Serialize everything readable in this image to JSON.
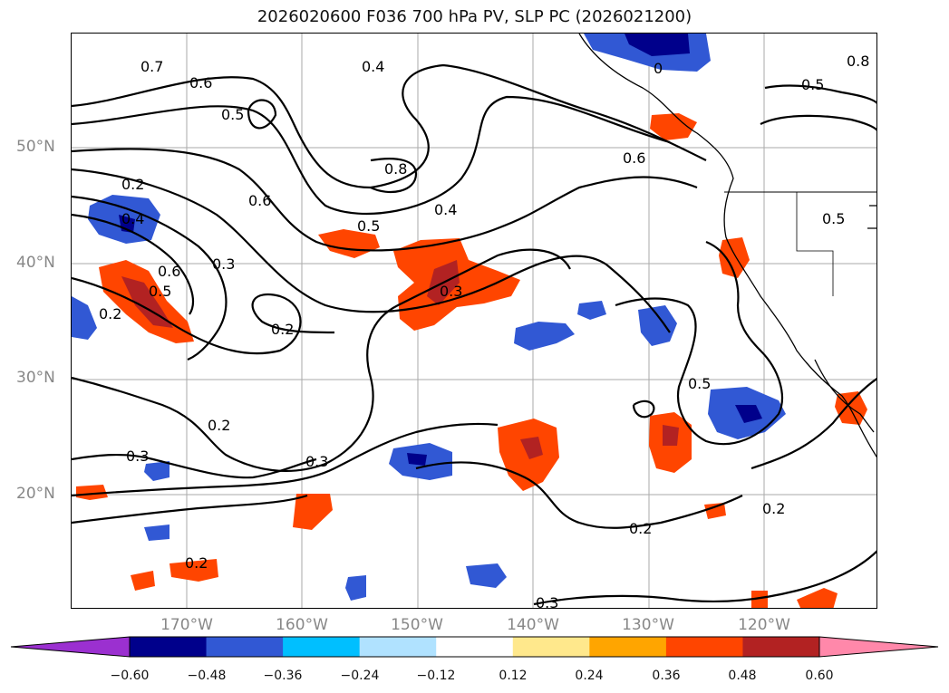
{
  "title": "2026020600 F036 700 hPa PV, SLP PC (2026021200)",
  "lat_labels": [
    "50°N",
    "40°N",
    "30°N",
    "20°N"
  ],
  "lon_labels": [
    "170°W",
    "160°W",
    "150°W",
    "140°W",
    "130°W",
    "120°W"
  ],
  "colorbar": {
    "extend": "both",
    "colors": [
      "#9b30d0",
      "#00008b",
      "#3158d4",
      "#00bfff",
      "#b0e2ff",
      "#ffffff",
      "#ffe88c",
      "#ffa500",
      "#ff4500",
      "#b22222",
      "#ff88aa"
    ],
    "ticks": [
      "−0.60",
      "−0.48",
      "−0.36",
      "−0.24",
      "−0.12",
      "0.12",
      "0.24",
      "0.36",
      "0.48",
      "0.60"
    ]
  },
  "contour_labels": [
    "0.7",
    "0.6",
    "0.5",
    "0.8",
    "0.6",
    "0.5",
    "0.4",
    "0.2",
    "0.4",
    "0.6",
    "0.5",
    "0.3",
    "0.2",
    "0.2",
    "0.3",
    "0.2",
    "0.3",
    "0.2",
    "0.5",
    "0.2",
    "0.3",
    "0.2",
    "0.6",
    "0.5",
    "0.8",
    "0.5",
    "0.3",
    "0.4",
    "0"
  ]
}
